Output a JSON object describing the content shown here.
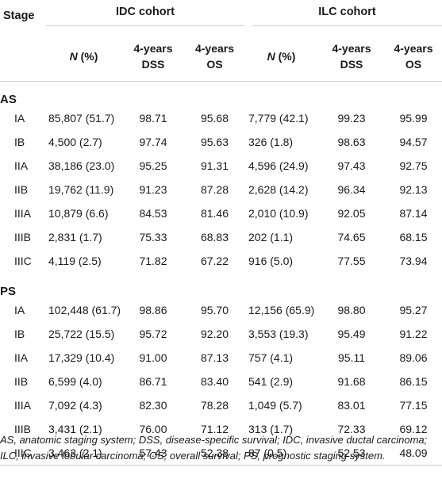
{
  "header": {
    "stage": "Stage",
    "idc_cohort": "IDC cohort",
    "ilc_cohort": "ILC cohort",
    "n_label": "N",
    "pct_label": " (%)",
    "dss_line1": "4-years",
    "dss_line2": "DSS",
    "os_line1": "4-years",
    "os_line2": "OS"
  },
  "sections": [
    {
      "label": "AS",
      "rows": [
        {
          "stage": "IA",
          "idc_n": "85,807 (51.7)",
          "idc_dss": "98.71",
          "idc_os": "95.68",
          "ilc_n": "7,779 (42.1)",
          "ilc_dss": "99.23",
          "ilc_os": "95.99"
        },
        {
          "stage": "IB",
          "idc_n": "4,500 (2.7)",
          "idc_dss": "97.74",
          "idc_os": "95.63",
          "ilc_n": "326 (1.8)",
          "ilc_dss": "98.63",
          "ilc_os": "94.57"
        },
        {
          "stage": "IIA",
          "idc_n": "38,186 (23.0)",
          "idc_dss": "95.25",
          "idc_os": "91.31",
          "ilc_n": "4,596 (24.9)",
          "ilc_dss": "97.43",
          "ilc_os": "92.75"
        },
        {
          "stage": "IIB",
          "idc_n": "19,762 (11.9)",
          "idc_dss": "91.23",
          "idc_os": "87.28",
          "ilc_n": "2,628 (14.2)",
          "ilc_dss": "96.34",
          "ilc_os": "92.13"
        },
        {
          "stage": "IIIA",
          "idc_n": "10,879 (6.6)",
          "idc_dss": "84.53",
          "idc_os": "81.46",
          "ilc_n": "2,010 (10.9)",
          "ilc_dss": "92.05",
          "ilc_os": "87.14"
        },
        {
          "stage": "IIIB",
          "idc_n": "2,831 (1.7)",
          "idc_dss": "75.33",
          "idc_os": "68.83",
          "ilc_n": "202 (1.1)",
          "ilc_dss": "74.65",
          "ilc_os": "68.15"
        },
        {
          "stage": "IIIC",
          "idc_n": "4,119 (2.5)",
          "idc_dss": "71.82",
          "idc_os": "67.22",
          "ilc_n": "916 (5.0)",
          "ilc_dss": "77.55",
          "ilc_os": "73.94"
        }
      ]
    },
    {
      "label": "PS",
      "rows": [
        {
          "stage": "IA",
          "idc_n": "102,448 (61.7)",
          "idc_dss": "98.86",
          "idc_os": "95.70",
          "ilc_n": "12,156 (65.9)",
          "ilc_dss": "98.80",
          "ilc_os": "95.27"
        },
        {
          "stage": "IB",
          "idc_n": "25,722 (15.5)",
          "idc_dss": "95.72",
          "idc_os": "92.20",
          "ilc_n": "3,553 (19.3)",
          "ilc_dss": "95.49",
          "ilc_os": "91.22"
        },
        {
          "stage": "IIA",
          "idc_n": "17,329 (10.4)",
          "idc_dss": "91.00",
          "idc_os": "87.13",
          "ilc_n": "757 (4.1)",
          "ilc_dss": "95.11",
          "ilc_os": "89.06"
        },
        {
          "stage": "IIB",
          "idc_n": "6,599 (4.0)",
          "idc_dss": "86.71",
          "idc_os": "83.40",
          "ilc_n": "541 (2.9)",
          "ilc_dss": "91.68",
          "ilc_os": "86.15"
        },
        {
          "stage": "IIIA",
          "idc_n": "7,092 (4.3)",
          "idc_dss": "82.30",
          "idc_os": "78.28",
          "ilc_n": "1,049 (5.7)",
          "ilc_dss": "83.01",
          "ilc_os": "77.15"
        },
        {
          "stage": "IIIB",
          "idc_n": "3,431 (2.1)",
          "idc_dss": "76.00",
          "idc_os": "71.12",
          "ilc_n": "313 (1.7)",
          "ilc_dss": "72.33",
          "ilc_os": "69.12"
        },
        {
          "stage": "IIIC",
          "idc_n": "3,463 (2.1)",
          "idc_dss": "57.43",
          "idc_os": "52.38",
          "ilc_n": "87 (0.5)",
          "ilc_dss": "52.53",
          "ilc_os": "48.09"
        }
      ]
    }
  ],
  "footnote": "AS, anatomic staging system; DSS, disease-specific survival; IDC, invasive ductal carcinoma; ILC, invasive lobular carcinoma; OS, overall survival; PS, prognostic staging system."
}
